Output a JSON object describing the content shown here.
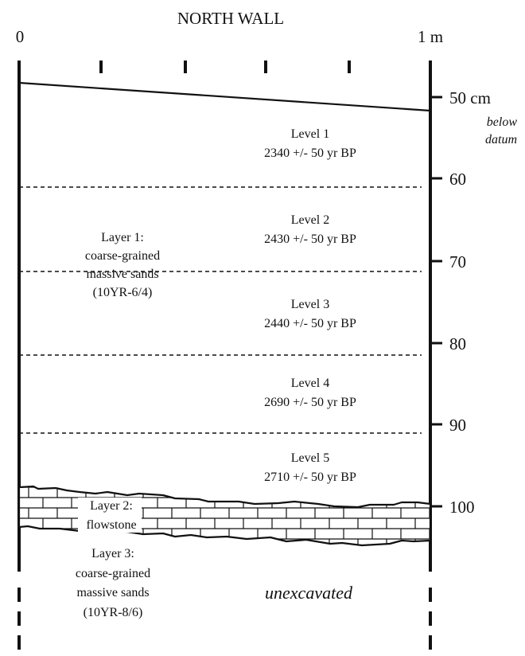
{
  "title": "NORTH WALL",
  "scale_start": "0",
  "scale_end": "1 m",
  "depth_ticks": [
    "50 cm",
    "60",
    "70",
    "80",
    "90",
    "100"
  ],
  "depth_note_line1": "below",
  "depth_note_line2": "datum",
  "levels": [
    {
      "name": "Level 1",
      "date": "2340 +/- 50 yr BP"
    },
    {
      "name": "Level 2",
      "date": "2430 +/- 50 yr BP"
    },
    {
      "name": "Level 3",
      "date": "2440 +/- 50 yr BP"
    },
    {
      "name": "Level 4",
      "date": "2690 +/- 50 yr BP"
    },
    {
      "name": "Level 5",
      "date": "2710 +/- 50 yr BP"
    }
  ],
  "layer1": {
    "line1": "Layer 1:",
    "line2": "coarse-grained",
    "line3": "massive sands",
    "line4": "(10YR-6/4)"
  },
  "layer2": {
    "line1": "Layer 2:",
    "line2": "flowstone"
  },
  "layer3": {
    "line1": "Layer 3:",
    "line2": "coarse-grained",
    "line3": "massive sands",
    "line4": "(10YR-8/6)"
  },
  "unexcavated": "unexcavated",
  "colors": {
    "ink": "#111111",
    "background": "#ffffff"
  }
}
